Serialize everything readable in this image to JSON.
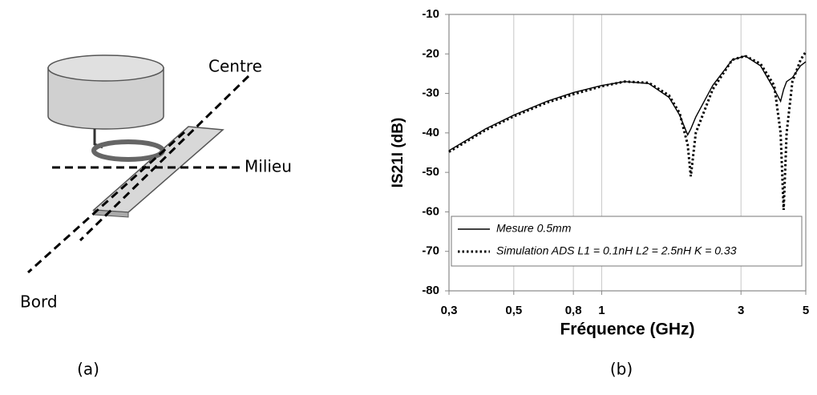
{
  "diagram": {
    "labels": [
      "Centre",
      "Milieu",
      "Bord"
    ],
    "caption": "(a)"
  },
  "chart_data": {
    "type": "line",
    "caption": "(b)",
    "x_label": "Fréquence (GHz)",
    "y_label": "IS21I (dB)",
    "x": [
      0.3,
      0.4,
      0.5,
      0.65,
      0.8,
      1.0,
      1.2,
      1.45,
      1.7,
      1.85,
      1.97,
      2.02,
      2.1,
      2.4,
      2.8,
      3.1,
      3.5,
      3.9,
      4.1,
      4.2,
      4.3,
      4.5,
      4.8,
      5.0
    ],
    "series": [
      {
        "name": "Mesure 0.5mm",
        "color": "#000000",
        "dash": "solid",
        "values": [
          -44.5,
          -39,
          -35.5,
          -32,
          -29.8,
          -28,
          -27,
          -27.5,
          -31,
          -35.5,
          -40.5,
          -39,
          -36,
          -28,
          -21.5,
          -20.5,
          -23,
          -29,
          -32,
          -29,
          -27,
          -26,
          -23,
          -22
        ]
      },
      {
        "name": "Simulation ADS L1 = 0.1nH L2 = 2.5nH K = 0.33",
        "color": "#000000",
        "dash": "dotted",
        "values": [
          -44.8,
          -39.3,
          -35.8,
          -32.3,
          -30.2,
          -28.2,
          -27,
          -27.3,
          -30.5,
          -35,
          -43,
          -51,
          -40,
          -29,
          -21.5,
          -20.5,
          -22.5,
          -28,
          -40,
          -59.5,
          -40,
          -27,
          -21.5,
          -19.5
        ]
      }
    ],
    "xlim": [
      0.3,
      5
    ],
    "log_x": true,
    "xticks": [
      {
        "value": 0.3,
        "label": "0,3"
      },
      {
        "value": 0.5,
        "label": "0,5"
      },
      {
        "value": 0.8,
        "label": "0,8"
      },
      1,
      3,
      5
    ],
    "ylim": [
      -80,
      -10
    ],
    "yticks": [
      -80,
      -70,
      -60,
      -50,
      -40,
      -30,
      -20,
      -10
    ],
    "grid": "x",
    "legend": "lower left"
  }
}
